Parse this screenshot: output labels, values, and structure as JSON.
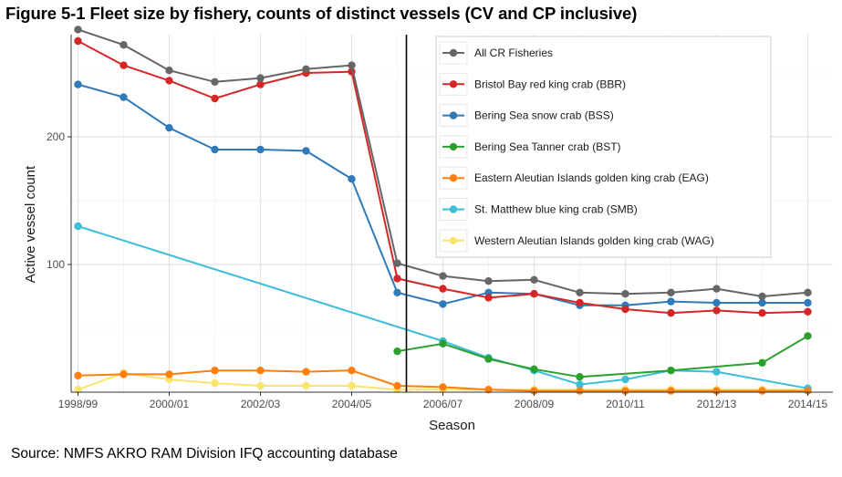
{
  "figure": {
    "title": "Figure 5-1 Fleet size by fishery, counts of distinct vessels (CV and CP inclusive)",
    "source": "Source: NMFS AKRO RAM Division IFQ accounting database"
  },
  "chart_data": {
    "type": "line",
    "title": "",
    "xlabel": "Season",
    "ylabel": "Active vessel count",
    "x": [
      "1998/99",
      "1999/00",
      "2000/01",
      "2001/02",
      "2002/03",
      "2003/04",
      "2004/05",
      "2005/06",
      "2006/07",
      "2007/08",
      "2008/09",
      "2009/10",
      "2010/11",
      "2011/12",
      "2012/13",
      "2013/14",
      "2014/15"
    ],
    "x_tick_labels": [
      "1998/99",
      "2000/01",
      "2002/03",
      "2004/05",
      "2006/07",
      "2008/09",
      "2010/11",
      "2012/13",
      "2014/15"
    ],
    "y_ticks": [
      100,
      200
    ],
    "ylim": [
      0,
      280
    ],
    "grid": true,
    "legend_position": "top-right",
    "annotations": [
      {
        "type": "vertical-line",
        "x": 2005.2
      }
    ],
    "series": [
      {
        "name": "All CR Fisheries",
        "color": "#666666",
        "points": [
          [
            1998,
            284
          ],
          [
            1999,
            272
          ],
          [
            2000,
            252
          ],
          [
            2001,
            243
          ],
          [
            2002,
            246
          ],
          [
            2003,
            253
          ],
          [
            2004,
            256
          ],
          [
            2005,
            101
          ],
          [
            2006,
            91
          ],
          [
            2007,
            87
          ],
          [
            2008,
            88
          ],
          [
            2009,
            78
          ],
          [
            2010,
            77
          ],
          [
            2011,
            78
          ],
          [
            2012,
            81
          ],
          [
            2013,
            75
          ],
          [
            2014,
            78
          ]
        ]
      },
      {
        "name": "Bristol Bay red king crab (BBR)",
        "color": "#d62728",
        "points": [
          [
            1998,
            275
          ],
          [
            1999,
            256
          ],
          [
            2000,
            244
          ],
          [
            2001,
            230
          ],
          [
            2002,
            241
          ],
          [
            2003,
            250
          ],
          [
            2004,
            251
          ],
          [
            2005,
            89
          ],
          [
            2006,
            81
          ],
          [
            2007,
            74
          ],
          [
            2008,
            77
          ],
          [
            2009,
            70
          ],
          [
            2010,
            65
          ],
          [
            2011,
            62
          ],
          [
            2012,
            64
          ],
          [
            2013,
            62
          ],
          [
            2014,
            63
          ]
        ]
      },
      {
        "name": "Bering Sea snow crab (BSS)",
        "color": "#2f7ab9",
        "points": [
          [
            1998,
            241
          ],
          [
            1999,
            231
          ],
          [
            2000,
            207
          ],
          [
            2001,
            190
          ],
          [
            2002,
            190
          ],
          [
            2003,
            189
          ],
          [
            2004,
            167
          ],
          [
            2005,
            78
          ],
          [
            2006,
            69
          ],
          [
            2007,
            78
          ],
          [
            2008,
            77
          ],
          [
            2009,
            68
          ],
          [
            2010,
            68
          ],
          [
            2011,
            71
          ],
          [
            2012,
            70
          ],
          [
            2013,
            70
          ],
          [
            2014,
            70
          ]
        ]
      },
      {
        "name": "Bering Sea Tanner crab (BST)",
        "color": "#2ca02c",
        "points": [
          [
            2005,
            32
          ],
          [
            2006,
            38
          ],
          [
            2007,
            26
          ],
          [
            2008,
            18
          ],
          [
            2009,
            12
          ],
          [
            2011,
            17
          ],
          [
            2013,
            23
          ],
          [
            2014,
            44
          ]
        ]
      },
      {
        "name": "Eastern Aleutian Islands golden king crab (EAG)",
        "color": "#ff7f0e",
        "points": [
          [
            1998,
            13
          ],
          [
            1999,
            14
          ],
          [
            2000,
            14
          ],
          [
            2001,
            17
          ],
          [
            2002,
            17
          ],
          [
            2003,
            16
          ],
          [
            2004,
            17
          ],
          [
            2005,
            5
          ],
          [
            2006,
            4
          ],
          [
            2007,
            2
          ],
          [
            2008,
            1
          ],
          [
            2009,
            1
          ],
          [
            2010,
            1
          ],
          [
            2011,
            1
          ],
          [
            2012,
            1
          ],
          [
            2013,
            1
          ],
          [
            2014,
            1
          ]
        ]
      },
      {
        "name": "St. Matthew blue king crab (SMB)",
        "color": "#3bbfd8",
        "points": [
          [
            1998,
            130
          ],
          [
            2006,
            40
          ],
          [
            2007,
            27
          ],
          [
            2008,
            17
          ],
          [
            2009,
            6
          ],
          [
            2010,
            10
          ],
          [
            2011,
            17
          ],
          [
            2012,
            16
          ],
          [
            2014,
            3
          ]
        ]
      },
      {
        "name": "Western Aleutian Islands golden king crab (WAG)",
        "color": "#fbe46b",
        "points": [
          [
            1998,
            2
          ],
          [
            1999,
            15
          ],
          [
            2000,
            10
          ],
          [
            2001,
            7
          ],
          [
            2002,
            5
          ],
          [
            2003,
            5
          ],
          [
            2004,
            5
          ],
          [
            2005,
            2
          ],
          [
            2006,
            2
          ],
          [
            2007,
            2
          ],
          [
            2008,
            2
          ],
          [
            2009,
            2
          ],
          [
            2010,
            2
          ],
          [
            2011,
            2
          ],
          [
            2012,
            2
          ],
          [
            2013,
            2
          ],
          [
            2014,
            2
          ]
        ]
      }
    ]
  }
}
